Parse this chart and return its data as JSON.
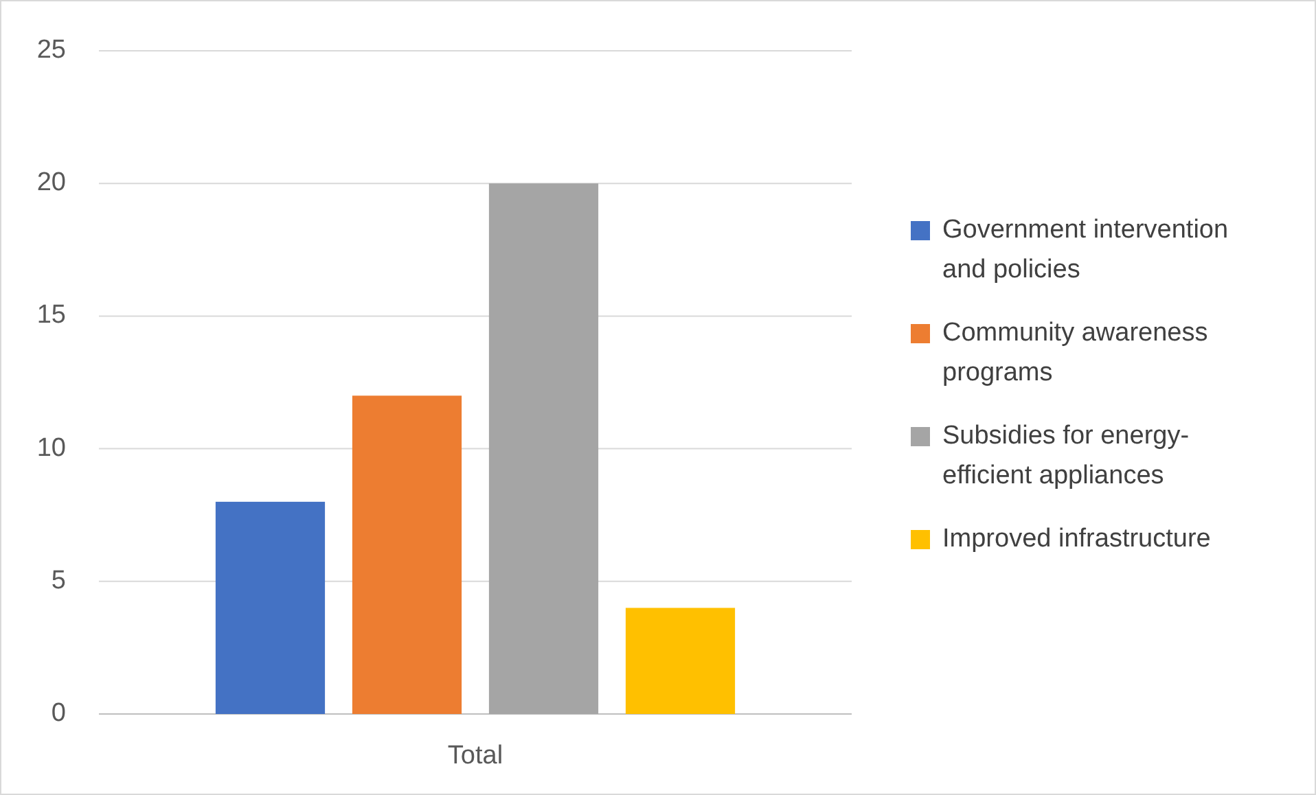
{
  "chart_data": {
    "type": "bar",
    "categories": [
      "Total"
    ],
    "series": [
      {
        "name": "Government intervention and policies",
        "color": "#4472c4",
        "values": [
          8
        ]
      },
      {
        "name": "Community awareness programs",
        "color": "#ed7d31",
        "values": [
          12
        ]
      },
      {
        "name": "Subsidies for energy-efficient appliances",
        "color": "#a5a5a5",
        "values": [
          20
        ]
      },
      {
        "name": "Improved infrastructure",
        "color": "#ffc000",
        "values": [
          4
        ]
      }
    ],
    "ylim": [
      0,
      25
    ],
    "yticks": [
      0,
      5,
      10,
      15,
      20,
      25
    ],
    "grid": "y",
    "legend": "right"
  }
}
